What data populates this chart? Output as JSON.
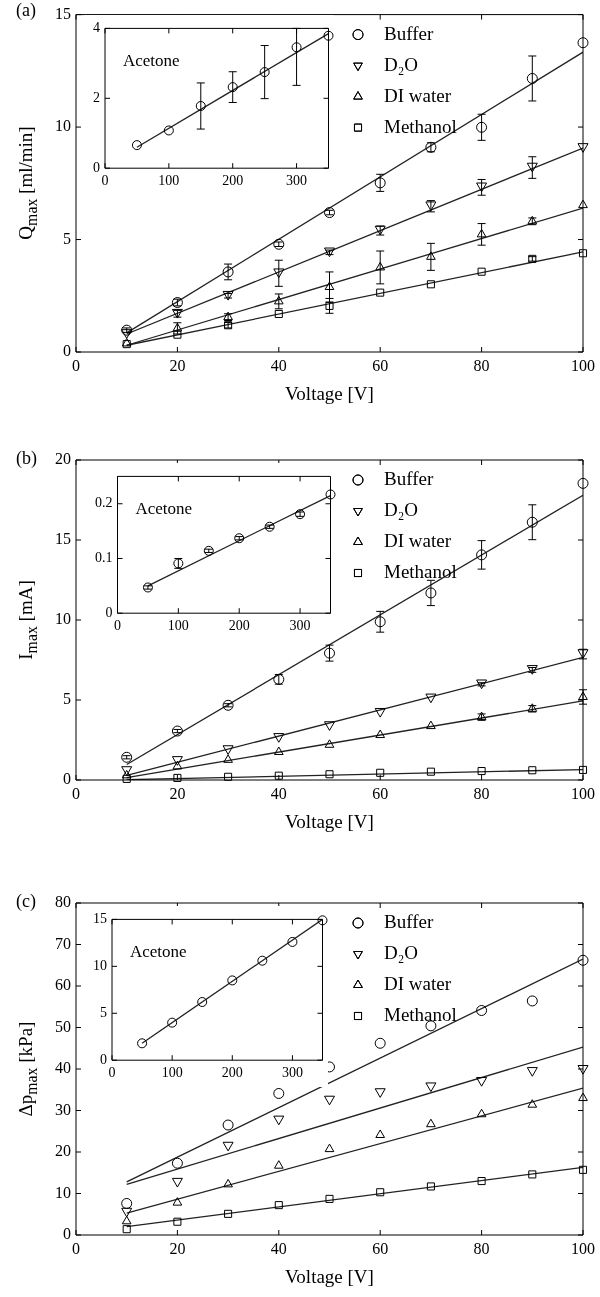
{
  "chart_data": [
    {
      "type": "scatter",
      "title": "(a)",
      "xlabel": "Voltage [V]",
      "ylabel": "Q$_{max}$ [ml/min]",
      "xlim": [
        0,
        100
      ],
      "xticks": [
        0,
        20,
        40,
        60,
        80,
        100
      ],
      "ylim": [
        0,
        15
      ],
      "yticks": [
        0,
        5,
        10,
        15
      ],
      "legend": "top right",
      "x": [
        10,
        20,
        30,
        40,
        50,
        60,
        70,
        80,
        90,
        100
      ],
      "series": [
        {
          "name": "Buffer",
          "color": "#000000",
          "marker": "circle",
          "values": [
            0.97,
            2.2,
            3.56,
            4.79,
            6.2,
            7.52,
            9.1,
            9.99,
            12.16,
            13.75
          ],
          "errors": [
            0.1,
            0.15,
            0.35,
            0.1,
            0.1,
            0.38,
            0.2,
            0.58,
            1.0,
            null
          ]
        },
        {
          "name": "D₂O",
          "color": "#000000",
          "marker": "triangle-down",
          "values": [
            0.8,
            1.7,
            2.5,
            3.5,
            4.43,
            5.4,
            6.48,
            7.32,
            8.2,
            9.07
          ],
          "errors": [
            null,
            0.15,
            0.1,
            0.58,
            0.1,
            0.2,
            0.25,
            0.35,
            0.48,
            null
          ]
        },
        {
          "name": "DI water",
          "color": "#000000",
          "marker": "triangle",
          "values": [
            0.38,
            1.05,
            1.55,
            2.25,
            2.89,
            3.76,
            4.23,
            5.23,
            5.81,
            6.53
          ],
          "errors": [
            null,
            0.25,
            0.15,
            0.33,
            0.67,
            0.73,
            0.6,
            0.48,
            0.15,
            null
          ]
        },
        {
          "name": "Methanol",
          "color": "#000000",
          "marker": "square",
          "values": [
            0.35,
            0.77,
            1.19,
            1.69,
            2.05,
            2.64,
            3.01,
            3.57,
            4.14,
            4.39
          ],
          "errors": [
            null,
            null,
            0.12,
            null,
            0.33,
            null,
            null,
            null,
            0.1,
            null
          ]
        },
        {
          "type": "line",
          "color": "#222222",
          "marker": "none",
          "x": [
            10,
            100
          ],
          "values": [
            0.85,
            13.33
          ]
        },
        {
          "type": "line",
          "color": "#222222",
          "marker": "none",
          "x": [
            10,
            100
          ],
          "values": [
            0.8,
            9.07
          ]
        },
        {
          "type": "line",
          "color": "#222222",
          "marker": "none",
          "x": [
            10,
            100
          ],
          "values": [
            0.3,
            6.4
          ]
        },
        {
          "type": "line",
          "color": "#222222",
          "marker": "none",
          "x": [
            10,
            100
          ],
          "values": [
            0.3,
            4.45
          ]
        }
      ]
    },
    {
      "type": "scatter",
      "annotations": [
        "Acetone"
      ],
      "xlim": [
        0,
        350
      ],
      "xticks": [
        0,
        100,
        200,
        300
      ],
      "ylim": [
        0,
        4
      ],
      "yticks": [
        0,
        2,
        4
      ],
      "x": [
        50,
        100,
        150,
        200,
        250,
        300,
        350
      ],
      "series": [
        {
          "color": "#000000",
          "marker": "circle",
          "values": [
            0.66,
            1.08,
            1.78,
            2.32,
            2.75,
            3.46,
            3.79
          ],
          "errors": [
            null,
            null,
            0.66,
            0.44,
            0.76,
            [
              2.37,
              4
            ],
            null
          ]
        },
        {
          "type": "line",
          "color": "#222222",
          "marker": "none",
          "x": [
            50,
            350
          ],
          "values": [
            0.6,
            3.85
          ]
        }
      ]
    },
    {
      "type": "scatter",
      "title": "(b)",
      "xlabel": "Voltage [V]",
      "ylabel": "I$_{max}$ [mA]",
      "xlim": [
        0,
        100
      ],
      "xticks": [
        0,
        20,
        40,
        60,
        80,
        100
      ],
      "ylim": [
        0,
        20
      ],
      "yticks": [
        0,
        5,
        10,
        15,
        20
      ],
      "legend": "top right",
      "x": [
        10,
        20,
        30,
        40,
        50,
        60,
        70,
        80,
        90,
        100
      ],
      "series": [
        {
          "name": "Buffer",
          "color": "#000000",
          "marker": "circle",
          "values": [
            1.42,
            3.06,
            4.67,
            6.29,
            7.93,
            9.89,
            11.69,
            14.07,
            16.11,
            18.54
          ],
          "errors": [
            0.1,
            0.1,
            0.1,
            0.3,
            0.5,
            0.65,
            0.79,
            0.89,
            1.09,
            null
          ]
        },
        {
          "name": "D₂O",
          "color": "#000000",
          "marker": "triangle-down",
          "values": [
            0.56,
            1.19,
            1.87,
            2.63,
            3.37,
            4.2,
            5.1,
            5.98,
            6.88,
            7.87
          ],
          "errors": [
            null,
            null,
            null,
            null,
            null,
            null,
            null,
            0.1,
            0.15,
            0.3
          ]
        },
        {
          "name": "DI water",
          "color": "#000000",
          "marker": "triangle",
          "values": [
            0.29,
            0.85,
            1.26,
            1.75,
            2.2,
            2.81,
            3.37,
            3.93,
            4.45,
            5.19
          ],
          "errors": [
            null,
            null,
            null,
            null,
            null,
            null,
            null,
            0.2,
            0.2,
            0.45
          ]
        },
        {
          "name": "Methanol",
          "color": "#000000",
          "marker": "square",
          "values": [
            0.07,
            0.13,
            0.2,
            0.27,
            0.36,
            0.45,
            0.52,
            0.56,
            0.61,
            0.63
          ]
        },
        {
          "type": "line",
          "color": "#222222",
          "marker": "none",
          "x": [
            10,
            100
          ],
          "values": [
            0.97,
            17.8
          ]
        },
        {
          "type": "line",
          "color": "#222222",
          "marker": "none",
          "x": [
            10,
            100
          ],
          "values": [
            0.29,
            7.66
          ]
        },
        {
          "type": "line",
          "color": "#222222",
          "marker": "none",
          "x": [
            10,
            100
          ],
          "values": [
            0.15,
            4.94
          ]
        },
        {
          "type": "line",
          "color": "#222222",
          "marker": "none",
          "x": [
            10,
            100
          ],
          "values": [
            0.02,
            0.65
          ]
        }
      ]
    },
    {
      "type": "scatter",
      "annotations": [
        "Acetone"
      ],
      "xlim": [
        0,
        350
      ],
      "xticks": [
        0,
        100,
        200,
        300
      ],
      "ylim": [
        0,
        0.25
      ],
      "yticks": [
        0,
        0.1,
        0.2
      ],
      "x": [
        50,
        100,
        150,
        200,
        250,
        300,
        350
      ],
      "series": [
        {
          "color": "#000000",
          "marker": "circle",
          "values": [
            0.047,
            0.091,
            0.114,
            0.137,
            0.158,
            0.181,
            0.217
          ],
          "errors": [
            0.003,
            0.009,
            0.003,
            0.003,
            0.003,
            0.004,
            null
          ]
        },
        {
          "type": "line",
          "color": "#222222",
          "marker": "none",
          "x": [
            50,
            350
          ],
          "values": [
            0.05,
            0.215
          ]
        }
      ]
    },
    {
      "type": "scatter",
      "title": "(c)",
      "xlabel": "Voltage [V]",
      "ylabel": "Δp$_{max}$ [kPa]",
      "xlim": [
        0,
        100
      ],
      "xticks": [
        0,
        20,
        40,
        60,
        80,
        100
      ],
      "ylim": [
        0,
        80
      ],
      "yticks": [
        0,
        10,
        20,
        30,
        40,
        50,
        60,
        70,
        80
      ],
      "legend": "top right",
      "x": [
        10,
        20,
        30,
        40,
        50,
        60,
        70,
        80,
        90,
        100
      ],
      "series": [
        {
          "name": "Buffer",
          "color": "#000000",
          "marker": "circle",
          "values": [
            7.6,
            17.3,
            26.5,
            34.1,
            40.5,
            46.2,
            50.4,
            54.1,
            56.4,
            66.2
          ]
        },
        {
          "name": "D₂O",
          "color": "#000000",
          "marker": "triangle-down",
          "values": [
            5.4,
            12.6,
            21.3,
            27.6,
            32.4,
            34.2,
            35.6,
            36.9,
            39.3,
            39.8
          ]
        },
        {
          "name": "DI water",
          "color": "#000000",
          "marker": "triangle",
          "values": [
            3.3,
            7.8,
            12.2,
            16.7,
            20.7,
            24.1,
            26.7,
            29.1,
            31.4,
            33.0
          ]
        },
        {
          "name": "Methanol",
          "color": "#000000",
          "marker": "square",
          "values": [
            1.4,
            3.2,
            5.1,
            7.2,
            8.7,
            10.3,
            11.7,
            13.0,
            14.6,
            15.7
          ]
        },
        {
          "type": "line",
          "color": "#222222",
          "marker": "none",
          "x": [
            10,
            100
          ],
          "values": [
            12.8,
            66.5
          ]
        },
        {
          "type": "line",
          "color": "#222222",
          "marker": "none",
          "x": [
            10,
            100
          ],
          "values": [
            12.2,
            45.3
          ]
        },
        {
          "type": "line",
          "color": "#222222",
          "marker": "none",
          "x": [
            10,
            100
          ],
          "values": [
            5.3,
            35.4
          ]
        },
        {
          "type": "line",
          "color": "#222222",
          "marker": "none",
          "x": [
            10,
            100
          ],
          "values": [
            2.0,
            16.3
          ]
        }
      ]
    },
    {
      "type": "scatter",
      "annotations": [
        "Acetone"
      ],
      "xlim": [
        0,
        350
      ],
      "xticks": [
        0,
        100,
        200,
        300
      ],
      "ylim": [
        0,
        15
      ],
      "yticks": [
        0,
        5,
        10,
        15
      ],
      "x": [
        50,
        100,
        150,
        200,
        250,
        300,
        350
      ],
      "series": [
        {
          "color": "#000000",
          "marker": "circle",
          "values": [
            1.8,
            4.0,
            6.2,
            8.5,
            10.6,
            12.6,
            14.9
          ]
        },
        {
          "type": "line",
          "color": "#222222",
          "marker": "none",
          "x": [
            50,
            350
          ],
          "values": [
            1.8,
            15.0
          ]
        }
      ]
    }
  ]
}
